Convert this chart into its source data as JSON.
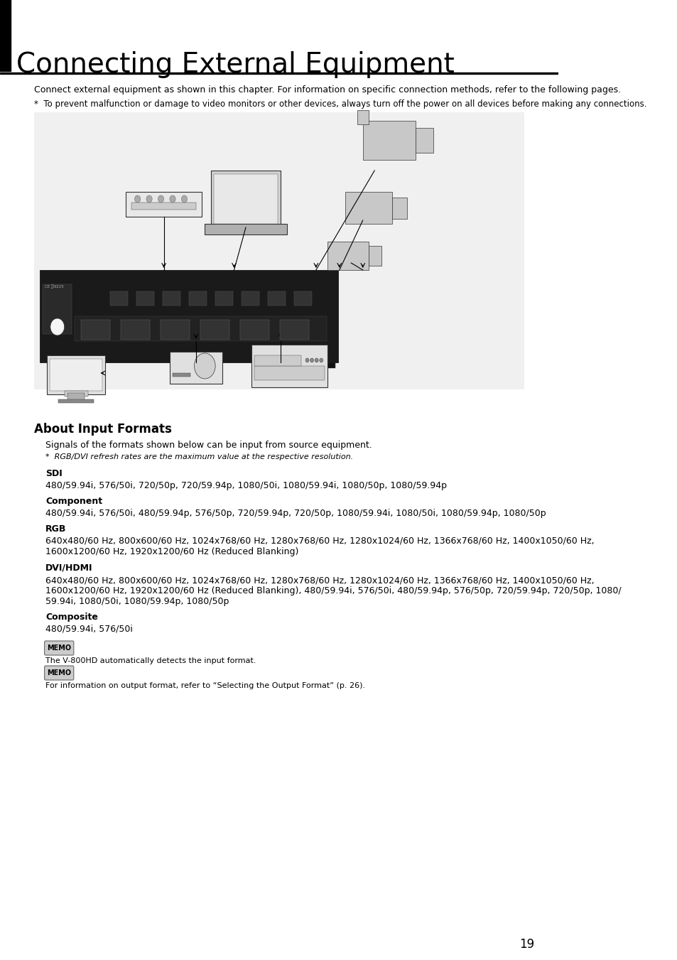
{
  "title": "Connecting External Equipment",
  "page_number": "19",
  "bg_color": "#ffffff",
  "header_bar_color": "#000000",
  "header_line_color": "#000000",
  "intro_text": "Connect external equipment as shown in this chapter. For information on specific connection methods, refer to the following pages.",
  "warning_text": "*  To prevent malfunction or damage to video monitors or other devices, always turn off the power on all devices before making any connections.",
  "section_title": "About Input Formats",
  "section_intro": "Signals of the formats shown below can be input from source equipment.",
  "section_note": "*  RGB/DVI refresh rates are the maximum value at the respective resolution.",
  "sdi_label": "SDI",
  "sdi_text": "480/59.94i, 576/50i, 720/50p, 720/59.94p, 1080/50i, 1080/59.94i, 1080/50p, 1080/59.94p",
  "component_label": "Component",
  "component_text": "480/59.94i, 576/50i, 480/59.94p, 576/50p, 720/59.94p, 720/50p, 1080/59.94i, 1080/50i, 1080/59.94p, 1080/50p",
  "rgb_label": "RGB",
  "rgb_text": "640x480/60 Hz, 800x600/60 Hz, 1024x768/60 Hz, 1280x768/60 Hz, 1280x1024/60 Hz, 1366x768/60 Hz, 1400x1050/60 Hz,\n1600x1200/60 Hz, 1920x1200/60 Hz (Reduced Blanking)",
  "dvihdmi_label": "DVI/HDMI",
  "dvihdmi_text": "640x480/60 Hz, 800x600/60 Hz, 1024x768/60 Hz, 1280x768/60 Hz, 1280x1024/60 Hz, 1366x768/60 Hz, 1400x1050/60 Hz,\n1600x1200/60 Hz, 1920x1200/60 Hz (Reduced Blanking), 480/59.94i, 576/50i, 480/59.94p, 576/50p, 720/59.94p, 720/50p, 1080/\n59.94i, 1080/50i, 1080/59.94p, 1080/50p",
  "composite_label": "Composite",
  "composite_text": "480/59.94i, 576/50i",
  "memo1_text": "The V-800HD automatically detects the input format.",
  "memo2_text": "For information on output format, refer to “Selecting the Output Format” (p. 26).",
  "memo_bg": "#e8e8e8",
  "memo_border": "#999999",
  "title_fontsize": 28,
  "body_fontsize": 9,
  "label_fontsize": 9,
  "section_title_fontsize": 12
}
